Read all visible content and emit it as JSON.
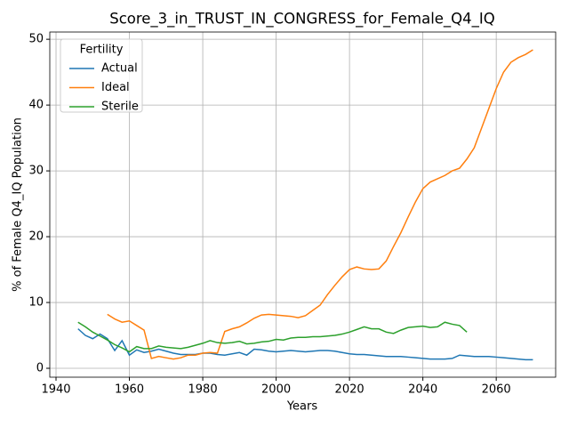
{
  "chart_data": {
    "type": "line",
    "title": "Score_3_in_TRUST_IN_CONGRESS_for_Female_Q4_IQ",
    "xlabel": "Years",
    "ylabel": "% of Female Q4_IQ Population",
    "legend_title": "Fertility",
    "legend": "upper left",
    "grid": true,
    "xlim": [
      1938.3,
      2076.2
    ],
    "ylim": [
      -1.35,
      51.1
    ],
    "xticks": [
      1940,
      1960,
      1980,
      2000,
      2020,
      2040,
      2060
    ],
    "yticks": [
      0,
      10,
      20,
      30,
      40,
      50
    ],
    "x": [
      1946,
      1948,
      1950,
      1952,
      1954,
      1956,
      1958,
      1960,
      1962,
      1964,
      1966,
      1968,
      1970,
      1972,
      1974,
      1976,
      1978,
      1980,
      1982,
      1984,
      1986,
      1988,
      1990,
      1992,
      1994,
      1996,
      1998,
      2000,
      2002,
      2004,
      2006,
      2008,
      2010,
      2012,
      2014,
      2016,
      2018,
      2020,
      2022,
      2024,
      2026,
      2028,
      2030,
      2032,
      2034,
      2036,
      2038,
      2040,
      2042,
      2044,
      2046,
      2048,
      2050,
      2052,
      2054,
      2056,
      2058,
      2060,
      2062,
      2064,
      2066,
      2068,
      2070
    ],
    "series": [
      {
        "name": "Actual",
        "color": "#1f77b4",
        "values": [
          6.0,
          5.0,
          4.5,
          5.2,
          4.5,
          2.7,
          4.2,
          2.0,
          2.8,
          2.4,
          2.6,
          2.9,
          2.6,
          2.3,
          2.1,
          2.1,
          2.1,
          2.3,
          2.3,
          2.1,
          2.0,
          2.2,
          2.4,
          2.0,
          2.9,
          2.8,
          2.6,
          2.5,
          2.6,
          2.7,
          2.6,
          2.5,
          2.6,
          2.7,
          2.7,
          2.6,
          2.4,
          2.2,
          2.1,
          2.1,
          2.0,
          1.9,
          1.8,
          1.8,
          1.8,
          1.7,
          1.6,
          1.5,
          1.4,
          1.4,
          1.4,
          1.5,
          2.0,
          1.9,
          1.8,
          1.8,
          1.8,
          1.7,
          1.6,
          1.5,
          1.4,
          1.3,
          1.3
        ]
      },
      {
        "name": "Ideal",
        "color": "#ff7f0e",
        "values": [
          null,
          null,
          null,
          null,
          8.2,
          7.5,
          7.0,
          7.2,
          6.5,
          5.8,
          1.5,
          1.8,
          1.6,
          1.4,
          1.6,
          2.0,
          2.0,
          2.3,
          2.4,
          2.3,
          5.6,
          6.0,
          6.3,
          6.9,
          7.6,
          8.1,
          8.2,
          8.1,
          8.0,
          7.9,
          7.7,
          8.0,
          8.8,
          9.6,
          11.2,
          12.6,
          13.9,
          15.0,
          15.4,
          15.1,
          15.0,
          15.1,
          16.3,
          18.5,
          20.6,
          23.0,
          25.3,
          27.3,
          28.3,
          28.8,
          29.3,
          30.0,
          30.4,
          31.8,
          33.5,
          36.5,
          39.5,
          42.5,
          45.0,
          46.5,
          47.2,
          47.7,
          48.4
        ]
      },
      {
        "name": "Sterile",
        "color": "#2ca02c",
        "values": [
          7.0,
          6.3,
          5.5,
          4.9,
          4.3,
          3.6,
          3.1,
          2.5,
          3.3,
          3.0,
          3.0,
          3.4,
          3.2,
          3.1,
          3.0,
          3.2,
          3.5,
          3.8,
          4.2,
          3.9,
          3.8,
          3.9,
          4.1,
          3.7,
          3.8,
          4.0,
          4.1,
          4.4,
          4.3,
          4.6,
          4.7,
          4.7,
          4.8,
          4.8,
          4.9,
          5.0,
          5.2,
          5.5,
          5.9,
          6.3,
          6.0,
          6.0,
          5.5,
          5.3,
          5.8,
          6.2,
          6.3,
          6.4,
          6.2,
          6.3,
          7.0,
          6.7,
          6.5,
          5.5,
          null,
          null,
          null,
          null,
          null,
          null,
          null,
          null,
          null
        ]
      }
    ]
  }
}
